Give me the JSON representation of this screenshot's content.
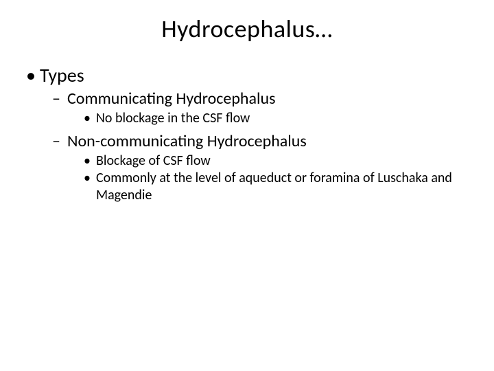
{
  "slide": {
    "title": "Hydrocephalus…",
    "title_fontsize": 36,
    "title_color": "#000000",
    "background_color": "#ffffff",
    "bullets": {
      "lvl1": {
        "fontsize": 28,
        "items": [
          {
            "text": "Types",
            "children": {
              "fontsize": 24,
              "items": [
                {
                  "text": "Communicating Hydrocephalus",
                  "children": {
                    "fontsize": 20,
                    "items": [
                      {
                        "text": "No blockage in the CSF flow"
                      }
                    ]
                  }
                },
                {
                  "text": "Non-communicating Hydrocephalus",
                  "children": {
                    "fontsize": 20,
                    "items": [
                      {
                        "text": "Blockage of CSF flow"
                      },
                      {
                        "text": "Commonly at  the level of aqueduct or foramina of Luschaka and Magendie"
                      }
                    ]
                  }
                }
              ]
            }
          }
        ]
      }
    }
  }
}
